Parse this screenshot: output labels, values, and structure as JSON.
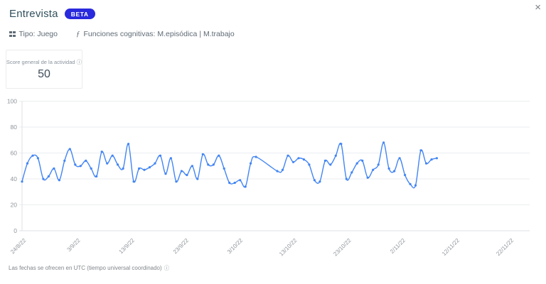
{
  "window": {
    "close_glyph": "×"
  },
  "header": {
    "title": "Entrevista",
    "badge": "BETA",
    "badge_color": "#2929dd"
  },
  "meta": {
    "type_label": "Tipo: Juego",
    "functions_icon_glyph": "ƒ",
    "functions_label": "Funciones cognitivas: M.episódica | M.trabajo"
  },
  "score_card": {
    "label": "Score general de la actividad",
    "info_glyph": "ⓘ",
    "value": "50"
  },
  "footer": {
    "note": "Las fechas se ofrecen en UTC (tiempo universal coordinado)",
    "info_glyph": "ⓘ"
  },
  "chart_data": {
    "type": "line",
    "title": "",
    "xlabel": "",
    "ylabel": "",
    "ylim": [
      0,
      100
    ],
    "y_ticks": [
      0,
      20,
      40,
      60,
      80,
      100
    ],
    "grid": true,
    "legend": false,
    "line_color": "#4285f4",
    "grid_color": "#ebedef",
    "axis_color": "#dfe1e5",
    "tick_label_color": "#8f959b",
    "x_tick_labels": [
      "24/8/22",
      "3/9/22",
      "13/9/22",
      "23/9/22",
      "3/10/22",
      "13/10/22",
      "23/10/22",
      "2/11/22",
      "12/11/22",
      "22/11/22"
    ],
    "x_tick_interval_days": 10,
    "series": [
      {
        "name": "score_general",
        "start_label": "24/8/22",
        "values": [
          38,
          52,
          58,
          56,
          40,
          42,
          48,
          39,
          54,
          63,
          51,
          50,
          54,
          48,
          42,
          61,
          52,
          58,
          51,
          48,
          67,
          38,
          48,
          47,
          49,
          52,
          58,
          44,
          56,
          38,
          46,
          43,
          50,
          40,
          59,
          51,
          51,
          58,
          48,
          37,
          37,
          39,
          34,
          52,
          57,
          null,
          null,
          null,
          46,
          47,
          58,
          53,
          56,
          55,
          51,
          39,
          38,
          54,
          51,
          58,
          67,
          40,
          45,
          52,
          54,
          41,
          47,
          51,
          68,
          48,
          46,
          56,
          43,
          36,
          35,
          62,
          52,
          55,
          56
        ]
      }
    ]
  }
}
